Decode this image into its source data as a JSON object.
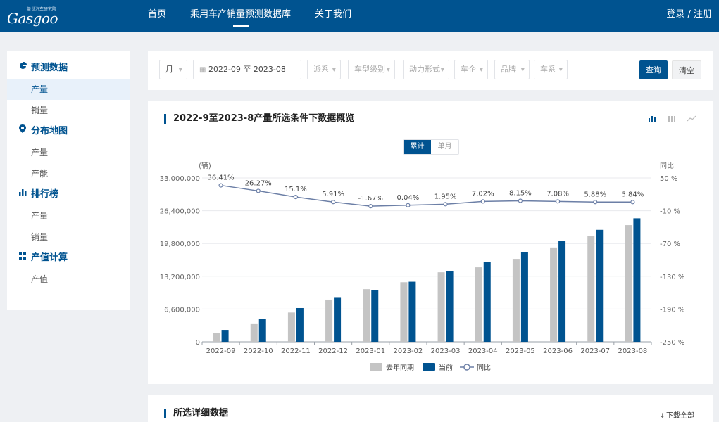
{
  "header": {
    "logo_small": "盖世汽车研究院",
    "logo_big": "Gasgoo",
    "nav": [
      "首页",
      "乘用车产销量预测数据库",
      "关于我们"
    ],
    "login": "登录 / 注册"
  },
  "sidebar": {
    "sections": [
      {
        "icon": "pie-chart-icon",
        "title": "预测数据",
        "items": [
          "产量",
          "销量"
        ]
      },
      {
        "icon": "location-pin-icon",
        "title": "分布地图",
        "items": [
          "产量",
          "产能"
        ]
      },
      {
        "icon": "bar-chart-icon",
        "title": "排行榜",
        "items": [
          "产量",
          "销量"
        ]
      },
      {
        "icon": "grid-icon",
        "title": "产值计算",
        "items": [
          "产值"
        ]
      }
    ],
    "active": "产量"
  },
  "filters": {
    "period": "月",
    "date_start": "2022-09",
    "date_sep": "至",
    "date_end": "2023-08",
    "dropdowns": [
      "派系",
      "车型级别",
      "动力形式",
      "车企",
      "品牌",
      "车系"
    ],
    "query": "查询",
    "clear": "清空"
  },
  "overview": {
    "title": "2022-9至2023-8产量所选条件下数据概览",
    "toggle": [
      "累计",
      "单月"
    ],
    "toggle_active": "累计",
    "tools": [
      "bar-chart-icon",
      "stacked-bar-icon",
      "line-chart-icon"
    ]
  },
  "details": {
    "title": "所选详细数据",
    "download": "下载全部"
  },
  "chart_data": {
    "type": "bar",
    "categories": [
      "2022-09",
      "2022-10",
      "2022-11",
      "2022-12",
      "2023-01",
      "2023-02",
      "2023-03",
      "2023-04",
      "2023-05",
      "2023-06",
      "2023-07",
      "2023-08"
    ],
    "series": [
      {
        "name": "去年同期",
        "type": "bar",
        "color": "#c4c4c4",
        "values": [
          1800000,
          3700000,
          5900000,
          8500000,
          10600000,
          12000000,
          14000000,
          15000000,
          16700000,
          19000000,
          21300000,
          23500000
        ]
      },
      {
        "name": "当前",
        "type": "bar",
        "color": "#005390",
        "values": [
          2400000,
          4600000,
          6800000,
          9000000,
          10400000,
          12100000,
          14300000,
          16100000,
          18100000,
          20350000,
          22550000,
          24870000
        ]
      },
      {
        "name": "同比",
        "type": "line",
        "axis": "right",
        "color": "#6c7fa6",
        "values": [
          36.41,
          26.27,
          15.1,
          5.91,
          -1.67,
          0.04,
          1.95,
          7.02,
          8.15,
          7.08,
          5.88,
          5.84
        ]
      }
    ],
    "data_labels": [
      "36.41%",
      "26.27%",
      "15.1%",
      "5.91%",
      "-1.67%",
      "0.04%",
      "1.95%",
      "7.02%",
      "8.15%",
      "7.08%",
      "5.88%",
      "5.84%"
    ],
    "yleft": {
      "label": "(辆)",
      "ylim": [
        0,
        33000000
      ],
      "ticks": [
        "0",
        "6,600,000",
        "13,200,000",
        "19,800,000",
        "26,400,000",
        "33,000,000"
      ]
    },
    "yright": {
      "label": "同比",
      "ylim": [
        -250,
        50
      ],
      "ticks": [
        "-250 %",
        "-190 %",
        "-130 %",
        "-70 %",
        "-10 %",
        "50 %"
      ]
    },
    "grid": true,
    "legend_position": "bottom"
  }
}
